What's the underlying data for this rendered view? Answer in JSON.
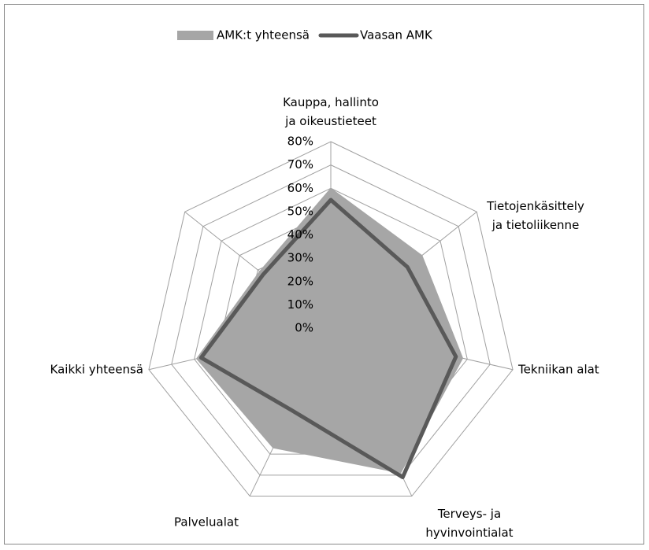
{
  "chart_data": {
    "type": "radar",
    "categories": [
      "Kauppa, hallinto\nja oikeustieteet",
      "Tietojenkäsittely\nja tietoliikenne",
      "Tekniikan alat",
      "Terveys- ja\nhyvinvointialat",
      "Palvelualat",
      "Kaikki yhteensä",
      null
    ],
    "series": [
      {
        "name": "AMK:t yhteensä",
        "color": "#a6a6a6",
        "fill": true,
        "values": [
          60,
          50,
          58,
          69,
          57,
          59,
          39
        ]
      },
      {
        "name": "Vaasan AMK",
        "color": "#595959",
        "fill": false,
        "values": [
          55,
          42,
          55,
          71,
          39,
          57,
          37
        ]
      }
    ],
    "ylim": [
      0,
      80
    ],
    "yticks": [
      {
        "value": 0,
        "label": "0%"
      },
      {
        "value": 10,
        "label": "10%"
      },
      {
        "value": 20,
        "label": "20%"
      },
      {
        "value": 30,
        "label": "30%"
      },
      {
        "value": 40,
        "label": "40%"
      },
      {
        "value": 50,
        "label": "50%"
      },
      {
        "value": 60,
        "label": "60%"
      },
      {
        "value": 70,
        "label": "70%"
      },
      {
        "value": 80,
        "label": "80%"
      }
    ],
    "grid": true,
    "legend": "top"
  }
}
